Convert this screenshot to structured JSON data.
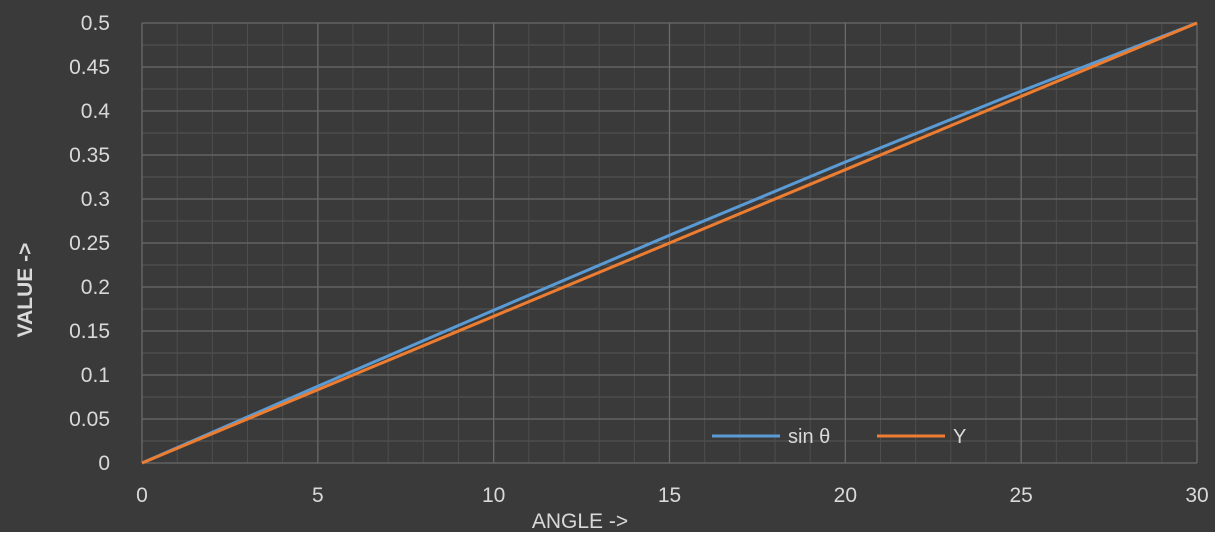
{
  "chart_data": {
    "type": "line",
    "xlabel": "ANGLE ->",
    "ylabel": "VALUE ->",
    "xlim": [
      0,
      30
    ],
    "ylim": [
      0,
      0.5
    ],
    "x_ticks": [
      "0",
      "5",
      "10",
      "15",
      "20",
      "25",
      "30"
    ],
    "y_ticks": [
      "0",
      "0.05",
      "0.1",
      "0.15",
      "0.2",
      "0.25",
      "0.3",
      "0.35",
      "0.4",
      "0.45",
      "0.5"
    ],
    "grid": true,
    "legend_position": "bottom-right",
    "x": [
      0,
      5,
      10,
      15,
      20,
      25,
      30
    ],
    "series": [
      {
        "name": "sin θ",
        "color": "#5b9bd5",
        "values": [
          0,
          0.0872,
          0.1736,
          0.2588,
          0.342,
          0.4226,
          0.5
        ]
      },
      {
        "name": "Y",
        "color": "#ed7d31",
        "values": [
          0,
          0.0833,
          0.1667,
          0.25,
          0.3333,
          0.4167,
          0.5
        ]
      }
    ],
    "colors": {
      "background": "#3a3a3a",
      "grid": "#6a6a6a",
      "text": "#d9d9d9"
    }
  }
}
